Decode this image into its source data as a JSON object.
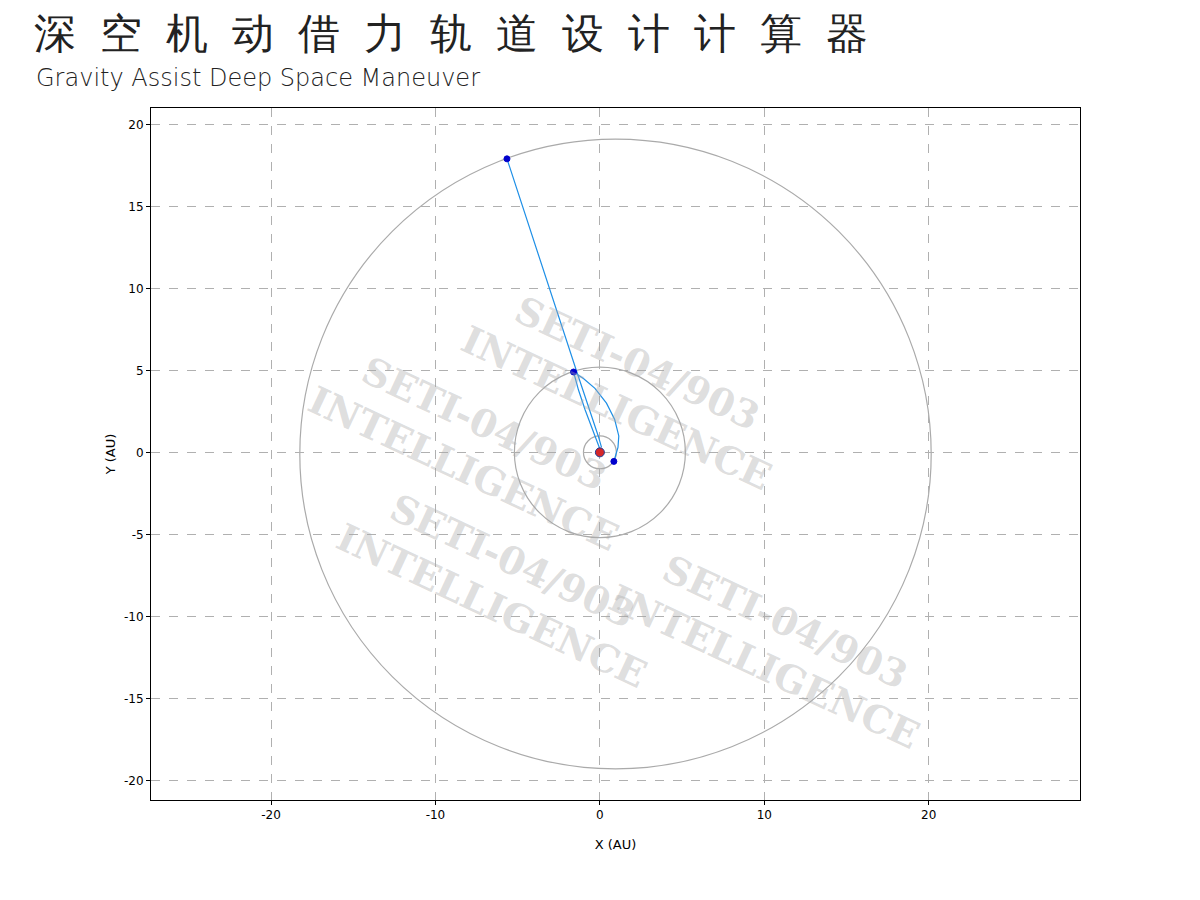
{
  "chart_data": {
    "type": "line",
    "title": "深空机动借力轨道设计计算器",
    "subtitle": "Gravity Assist Deep Space Maneuver",
    "x_label": "X (AU)",
    "y_label": "Y (AU)",
    "xlim": [
      -27.3,
      29.2
    ],
    "ylim": [
      -21.2,
      21.0
    ],
    "xticks": [
      -20,
      -10,
      0,
      10,
      20
    ],
    "yticks": [
      -20,
      -15,
      -10,
      -5,
      0,
      5,
      10,
      15,
      20
    ],
    "grid": true,
    "orbits": [
      {
        "center": [
          0,
          0
        ],
        "radius": 1.0,
        "color": "#aaaaaa"
      },
      {
        "center": [
          0,
          0
        ],
        "radius": 5.2,
        "color": "#aaaaaa"
      },
      {
        "center": [
          0.95,
          -0.1
        ],
        "radius": 19.2,
        "color": "#aaaaaa"
      }
    ],
    "series": [
      {
        "type": "line",
        "color": "#1e8fe6",
        "x": [
          0.85,
          1.1,
          1.15,
          0.9,
          0.4,
          -0.3,
          -1.0,
          -1.6
        ],
        "y": [
          -0.55,
          0.3,
          1.0,
          2.0,
          3.0,
          3.9,
          4.5,
          4.9
        ]
      },
      {
        "type": "line",
        "color": "#1e8fe6",
        "x": [
          -1.6,
          -1.3,
          -0.9,
          -0.5,
          -0.15,
          0.0
        ],
        "y": [
          4.9,
          3.8,
          2.6,
          1.5,
          0.6,
          0.2
        ]
      },
      {
        "type": "line",
        "color": "#1e8fe6",
        "x": [
          0.1,
          -0.1,
          -1.4,
          -3.5,
          -5.65
        ],
        "y": [
          0.3,
          1.0,
          4.9,
          11.3,
          17.9
        ]
      },
      {
        "type": "scatter",
        "marker": "circle",
        "color": "#0000cc",
        "x": [
          0.85,
          -1.6,
          -5.65
        ],
        "y": [
          -0.55,
          4.9,
          17.9
        ]
      },
      {
        "type": "scatter",
        "marker": "circle",
        "color": "#d62728",
        "x": [
          0
        ],
        "y": [
          0
        ]
      }
    ],
    "watermark": [
      "SETI-04/903",
      "INTELLIGENCE"
    ]
  }
}
